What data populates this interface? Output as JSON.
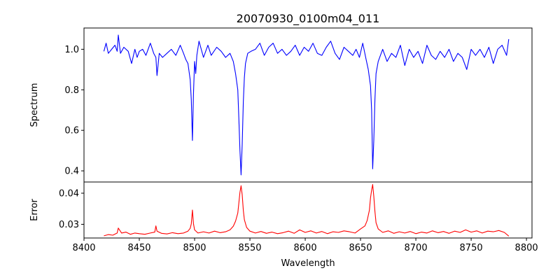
{
  "chart_data": {
    "type": "line",
    "title": "20070930_0100m04_011",
    "xlabel": "Wavelength",
    "xlim": [
      8400,
      8805
    ],
    "xticks": [
      8400,
      8450,
      8500,
      8550,
      8600,
      8650,
      8700,
      8750,
      8800
    ],
    "grid": false,
    "panels": [
      {
        "name": "spectrum",
        "ylabel": "Spectrum",
        "ylim": [
          0.345,
          1.105
        ],
        "yticks": [
          0.4,
          0.6,
          0.8,
          1.0
        ],
        "ytick_labels": [
          "0.4",
          "0.6",
          "0.8",
          "1.0"
        ],
        "color": "#0000ff",
        "series": {
          "x": [
            8418,
            8420,
            8422,
            8425,
            8428,
            8430,
            8431,
            8433,
            8436,
            8440,
            8443,
            8446,
            8448,
            8450,
            8453,
            8456,
            8460,
            8463,
            8465,
            8466,
            8468,
            8471,
            8475,
            8479,
            8483,
            8487,
            8490,
            8492,
            8494,
            8496,
            8497,
            8498,
            8499,
            8500,
            8501,
            8502,
            8504,
            8506,
            8508,
            8512,
            8515,
            8520,
            8524,
            8528,
            8532,
            8535,
            8537,
            8539,
            8540,
            8541,
            8542,
            8543,
            8544,
            8545,
            8546,
            8548,
            8551,
            8555,
            8559,
            8563,
            8567,
            8571,
            8575,
            8579,
            8583,
            8587,
            8591,
            8595,
            8599,
            8603,
            8607,
            8611,
            8615,
            8619,
            8623,
            8627,
            8631,
            8635,
            8639,
            8643,
            8646,
            8649,
            8652,
            8655,
            8657,
            8659,
            8660,
            8661,
            8662,
            8663,
            8664,
            8666,
            8668,
            8670,
            8674,
            8678,
            8682,
            8686,
            8690,
            8694,
            8698,
            8702,
            8706,
            8710,
            8714,
            8718,
            8722,
            8726,
            8730,
            8734,
            8738,
            8742,
            8746,
            8750,
            8754,
            8758,
            8762,
            8766,
            8770,
            8774,
            8778,
            8782,
            8784
          ],
          "y": [
            0.99,
            1.03,
            0.98,
            1.0,
            1.02,
            0.99,
            1.07,
            0.98,
            1.01,
            0.99,
            0.93,
            1.0,
            0.96,
            0.99,
            1.0,
            0.97,
            1.03,
            0.98,
            0.96,
            0.87,
            0.98,
            0.96,
            0.98,
            1.0,
            0.97,
            1.02,
            0.98,
            0.95,
            0.93,
            0.85,
            0.75,
            0.55,
            0.78,
            0.94,
            0.88,
            0.97,
            1.04,
            1.0,
            0.96,
            1.02,
            0.97,
            1.01,
            0.99,
            0.96,
            0.98,
            0.94,
            0.88,
            0.8,
            0.66,
            0.5,
            0.38,
            0.53,
            0.74,
            0.86,
            0.93,
            0.98,
            0.99,
            1.0,
            1.03,
            0.97,
            1.01,
            1.03,
            0.98,
            1.0,
            0.97,
            0.99,
            1.02,
            0.97,
            1.01,
            0.99,
            1.03,
            0.98,
            0.97,
            1.01,
            1.04,
            0.98,
            0.95,
            1.01,
            0.99,
            0.97,
            1.0,
            0.96,
            1.03,
            0.95,
            0.9,
            0.82,
            0.7,
            0.41,
            0.55,
            0.75,
            0.88,
            0.94,
            0.97,
            1.0,
            0.94,
            0.98,
            0.96,
            1.02,
            0.92,
            1.0,
            0.96,
            0.99,
            0.93,
            1.02,
            0.97,
            0.95,
            0.99,
            0.96,
            1.0,
            0.94,
            0.98,
            0.96,
            0.9,
            1.0,
            0.97,
            1.0,
            0.96,
            1.01,
            0.93,
            1.0,
            1.02,
            0.97,
            1.05
          ]
        }
      },
      {
        "name": "error",
        "ylabel": "Error",
        "ylim": [
          0.0256,
          0.0436
        ],
        "yticks": [
          0.03,
          0.04
        ],
        "ytick_labels": [
          "0.03",
          "0.04"
        ],
        "color": "#ff0000",
        "series": {
          "x": [
            8418,
            8422,
            8426,
            8430,
            8431,
            8434,
            8438,
            8442,
            8446,
            8450,
            8455,
            8460,
            8464,
            8465,
            8466,
            8470,
            8475,
            8480,
            8485,
            8490,
            8494,
            8496,
            8497,
            8498,
            8499,
            8500,
            8503,
            8508,
            8513,
            8518,
            8523,
            8528,
            8532,
            8535,
            8537,
            8539,
            8540,
            8541,
            8542,
            8543,
            8544,
            8545,
            8547,
            8550,
            8555,
            8560,
            8565,
            8570,
            8575,
            8580,
            8585,
            8590,
            8595,
            8600,
            8605,
            8610,
            8615,
            8620,
            8625,
            8630,
            8635,
            8640,
            8645,
            8650,
            8654,
            8656,
            8658,
            8659,
            8660,
            8661,
            8662,
            8663,
            8664,
            8666,
            8670,
            8675,
            8680,
            8685,
            8690,
            8695,
            8700,
            8705,
            8710,
            8715,
            8720,
            8725,
            8730,
            8735,
            8740,
            8745,
            8750,
            8755,
            8760,
            8765,
            8770,
            8775,
            8780,
            8784
          ],
          "y": [
            0.0263,
            0.0267,
            0.0265,
            0.0272,
            0.0288,
            0.0272,
            0.0275,
            0.0268,
            0.0272,
            0.027,
            0.0268,
            0.0272,
            0.0275,
            0.0295,
            0.0278,
            0.0271,
            0.0269,
            0.0273,
            0.027,
            0.0272,
            0.0278,
            0.0287,
            0.0302,
            0.0346,
            0.0302,
            0.0282,
            0.0272,
            0.0276,
            0.0272,
            0.0278,
            0.0273,
            0.0276,
            0.0282,
            0.0294,
            0.031,
            0.0336,
            0.0368,
            0.0403,
            0.0424,
            0.0395,
            0.0345,
            0.0315,
            0.029,
            0.0278,
            0.0272,
            0.0277,
            0.0271,
            0.0275,
            0.027,
            0.0273,
            0.0278,
            0.0271,
            0.0282,
            0.0274,
            0.0279,
            0.0272,
            0.0277,
            0.027,
            0.0276,
            0.0274,
            0.0279,
            0.0276,
            0.0272,
            0.0285,
            0.0295,
            0.0312,
            0.0345,
            0.0385,
            0.041,
            0.0428,
            0.039,
            0.0342,
            0.0305,
            0.0285,
            0.0274,
            0.0279,
            0.0271,
            0.0276,
            0.0272,
            0.0277,
            0.027,
            0.0275,
            0.0272,
            0.0279,
            0.0273,
            0.0277,
            0.0271,
            0.0278,
            0.0274,
            0.0282,
            0.0275,
            0.0279,
            0.0272,
            0.0278,
            0.0276,
            0.028,
            0.0274,
            0.0262
          ]
        }
      }
    ]
  }
}
